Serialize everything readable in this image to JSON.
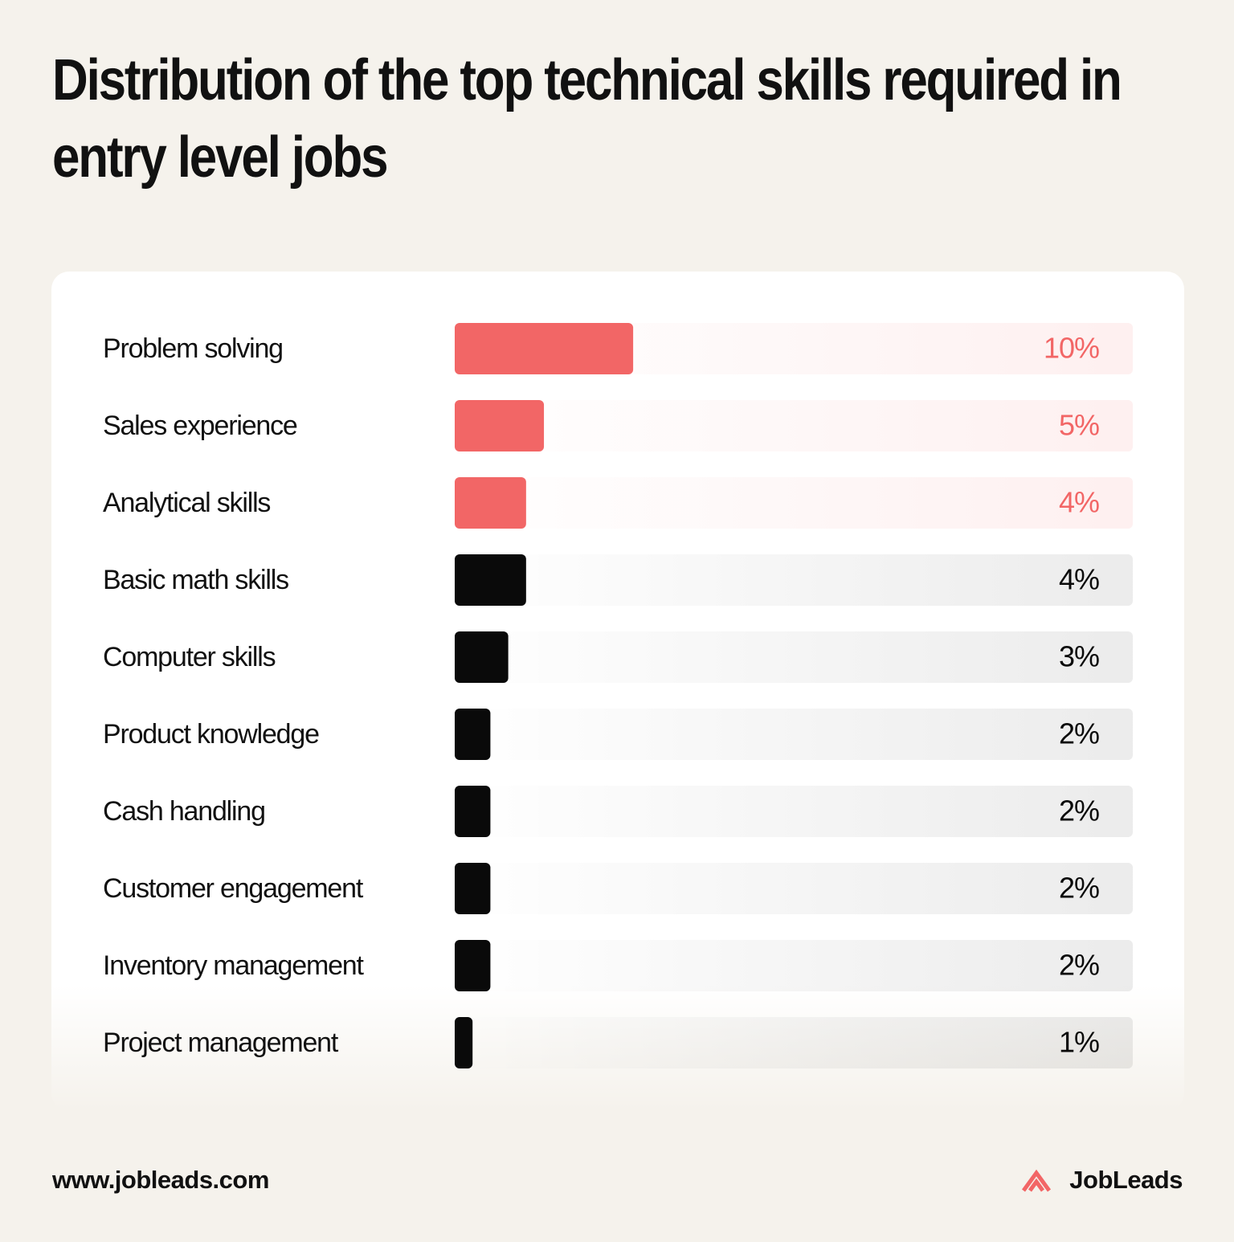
{
  "chart_data": {
    "type": "hbar",
    "title": "Distribution of the top technical skills required in entry level jobs",
    "categories": [
      "Problem solving",
      "Sales experience",
      "Analytical skills",
      "Basic math skills",
      "Computer skills",
      "Product knowledge",
      "Cash handling",
      "Customer engagement",
      "Inventory management",
      "Project management"
    ],
    "values": [
      10,
      5,
      4,
      4,
      3,
      2,
      2,
      2,
      2,
      1
    ],
    "value_labels": [
      "10%",
      "5%",
      "4%",
      "4%",
      "3%",
      "2%",
      "2%",
      "2%",
      "2%",
      "1%"
    ],
    "colors": [
      "#f26666",
      "#f26666",
      "#f26666",
      "#0a0a0a",
      "#0a0a0a",
      "#0a0a0a",
      "#0a0a0a",
      "#0a0a0a",
      "#0a0a0a",
      "#0a0a0a"
    ],
    "xlim": [
      0,
      38
    ]
  },
  "footer": {
    "url": "www.jobleads.com",
    "brand": "JobLeads"
  }
}
